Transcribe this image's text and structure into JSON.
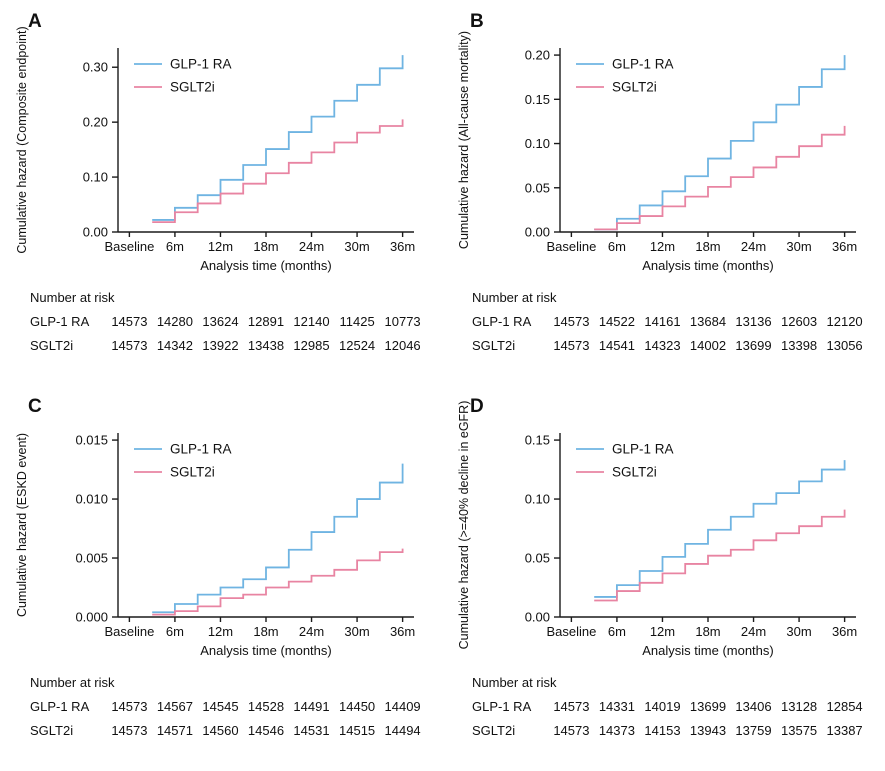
{
  "figure": {
    "background": "#ffffff",
    "accent_colors": {
      "glp1_ra": "#6FB4E2",
      "sglt2i": "#E884A2",
      "axis": "#1a1a1a"
    },
    "x_axis": {
      "label": "Analysis time (months)",
      "tick_values": [
        0,
        6,
        12,
        18,
        24,
        30,
        36
      ],
      "tick_labels": [
        "Baseline",
        "6m",
        "12m",
        "18m",
        "24m",
        "30m",
        "36m"
      ]
    },
    "at_risk_header": "Number at risk",
    "series_names": [
      "GLP-1 RA",
      "SGLT2i"
    ]
  },
  "chart_data": [
    {
      "panel": "A",
      "type": "line",
      "line_style": "step",
      "ylabel": "Cumulative hazard (Composite endpoint)",
      "xlabel": "Analysis time (months)",
      "x": [
        3,
        6,
        9,
        12,
        15,
        18,
        21,
        24,
        27,
        30,
        33,
        36
      ],
      "ylim": [
        0,
        0.335
      ],
      "yticks": [
        0,
        0.1,
        0.2,
        0.3
      ],
      "ytick_labels": [
        "0.00",
        "0.10",
        "0.20",
        "0.30"
      ],
      "series": [
        {
          "name": "GLP-1 RA",
          "color": "#6FB4E2",
          "values": [
            0.022,
            0.044,
            0.067,
            0.095,
            0.122,
            0.151,
            0.182,
            0.21,
            0.239,
            0.268,
            0.298,
            0.322
          ]
        },
        {
          "name": "SGLT2i",
          "color": "#E884A2",
          "values": [
            0.018,
            0.036,
            0.052,
            0.07,
            0.088,
            0.107,
            0.126,
            0.145,
            0.163,
            0.181,
            0.193,
            0.205
          ]
        }
      ],
      "at_risk": [
        {
          "label": "GLP-1 RA",
          "values": [
            "14573",
            "14280",
            "13624",
            "12891",
            "12140",
            "11425",
            "10773"
          ]
        },
        {
          "label": "SGLT2i",
          "values": [
            "14573",
            "14342",
            "13922",
            "13438",
            "12985",
            "12524",
            "12046"
          ]
        }
      ]
    },
    {
      "panel": "B",
      "type": "line",
      "line_style": "step",
      "ylabel": "Cumulative hazard (All-cause mortality)",
      "xlabel": "Analysis time (months)",
      "x": [
        3,
        6,
        9,
        12,
        15,
        18,
        21,
        24,
        27,
        30,
        33,
        36
      ],
      "ylim": [
        0,
        0.208
      ],
      "yticks": [
        0,
        0.05,
        0.1,
        0.15,
        0.2
      ],
      "ytick_labels": [
        "0.00",
        "0.05",
        "0.10",
        "0.15",
        "0.20"
      ],
      "series": [
        {
          "name": "GLP-1 RA",
          "color": "#6FB4E2",
          "values": [
            0.003,
            0.015,
            0.03,
            0.046,
            0.063,
            0.083,
            0.103,
            0.124,
            0.144,
            0.164,
            0.184,
            0.2
          ]
        },
        {
          "name": "SGLT2i",
          "color": "#E884A2",
          "values": [
            0.003,
            0.01,
            0.018,
            0.029,
            0.04,
            0.051,
            0.062,
            0.073,
            0.085,
            0.097,
            0.11,
            0.12
          ]
        }
      ],
      "at_risk": [
        {
          "label": "GLP-1 RA",
          "values": [
            "14573",
            "14522",
            "14161",
            "13684",
            "13136",
            "12603",
            "12120"
          ]
        },
        {
          "label": "SGLT2i",
          "values": [
            "14573",
            "14541",
            "14323",
            "14002",
            "13699",
            "13398",
            "13056"
          ]
        }
      ]
    },
    {
      "panel": "C",
      "type": "line",
      "line_style": "step",
      "ylabel": "Cumulative hazard (ESKD event)",
      "xlabel": "Analysis time (months)",
      "x": [
        3,
        6,
        9,
        12,
        15,
        18,
        21,
        24,
        27,
        30,
        33,
        36
      ],
      "ylim": [
        0,
        0.0156
      ],
      "yticks": [
        0,
        0.005,
        0.01,
        0.015
      ],
      "ytick_labels": [
        "0.000",
        "0.005",
        "0.010",
        "0.015"
      ],
      "series": [
        {
          "name": "GLP-1 RA",
          "color": "#6FB4E2",
          "values": [
            0.0004,
            0.0011,
            0.0019,
            0.0025,
            0.0032,
            0.0042,
            0.0057,
            0.0072,
            0.0085,
            0.01,
            0.0114,
            0.013
          ]
        },
        {
          "name": "SGLT2i",
          "color": "#E884A2",
          "values": [
            0.0002,
            0.0005,
            0.0009,
            0.0016,
            0.0019,
            0.0025,
            0.003,
            0.0035,
            0.004,
            0.0048,
            0.0055,
            0.0058
          ]
        }
      ],
      "at_risk": [
        {
          "label": "GLP-1 RA",
          "values": [
            "14573",
            "14567",
            "14545",
            "14528",
            "14491",
            "14450",
            "14409"
          ]
        },
        {
          "label": "SGLT2i",
          "values": [
            "14573",
            "14571",
            "14560",
            "14546",
            "14531",
            "14515",
            "14494"
          ]
        }
      ]
    },
    {
      "panel": "D",
      "type": "line",
      "line_style": "step",
      "ylabel": "Cumulative hazard (>=40% decline in eGFR)",
      "xlabel": "Analysis time (months)",
      "x": [
        3,
        6,
        9,
        12,
        15,
        18,
        21,
        24,
        27,
        30,
        33,
        36
      ],
      "ylim": [
        0,
        0.156
      ],
      "yticks": [
        0,
        0.05,
        0.1,
        0.15
      ],
      "ytick_labels": [
        "0.00",
        "0.05",
        "0.10",
        "0.15"
      ],
      "series": [
        {
          "name": "GLP-1 RA",
          "color": "#6FB4E2",
          "values": [
            0.017,
            0.027,
            0.039,
            0.051,
            0.062,
            0.074,
            0.085,
            0.096,
            0.105,
            0.115,
            0.125,
            0.133
          ]
        },
        {
          "name": "SGLT2i",
          "color": "#E884A2",
          "values": [
            0.014,
            0.022,
            0.029,
            0.037,
            0.045,
            0.052,
            0.057,
            0.065,
            0.071,
            0.077,
            0.085,
            0.091
          ]
        }
      ],
      "at_risk": [
        {
          "label": "GLP-1 RA",
          "values": [
            "14573",
            "14331",
            "14019",
            "13699",
            "13406",
            "13128",
            "12854"
          ]
        },
        {
          "label": "SGLT2i",
          "values": [
            "14573",
            "14373",
            "14153",
            "13943",
            "13759",
            "13575",
            "13387"
          ]
        }
      ]
    }
  ]
}
